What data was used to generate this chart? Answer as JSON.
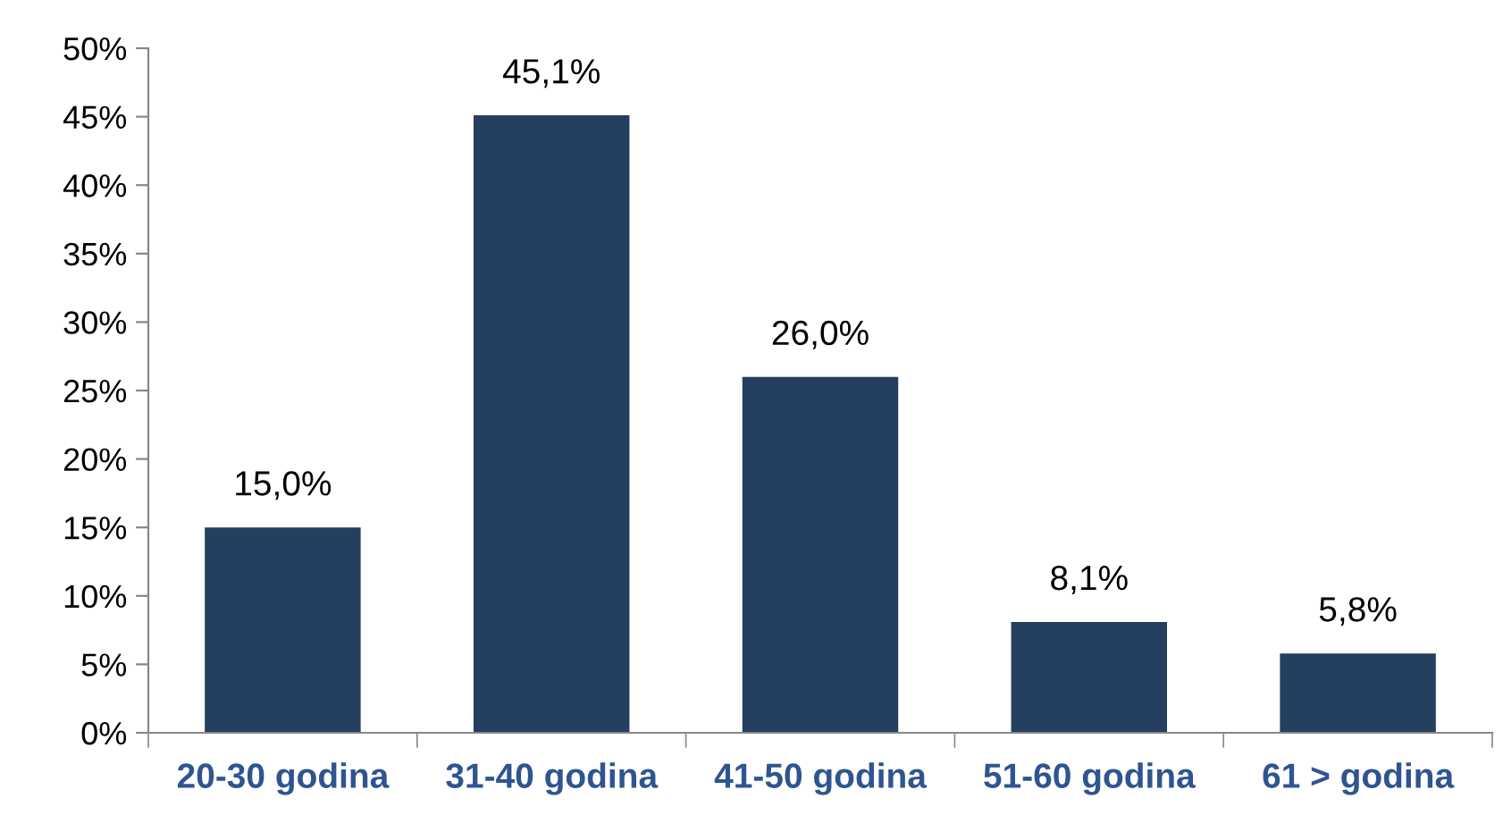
{
  "chart_data": {
    "type": "bar",
    "categories": [
      "20-30 godina",
      "31-40 godina",
      "41-50 godina",
      "51-60 godina",
      "61 > godina"
    ],
    "values": [
      15.0,
      45.1,
      26.0,
      8.1,
      5.8
    ],
    "value_labels": [
      "15,0%",
      "45,1%",
      "26,0%",
      "8,1%",
      "5,8%"
    ],
    "color": "#243f60",
    "ylim": [
      0,
      50
    ],
    "yticks": [
      {
        "value": 0,
        "label": "0%"
      },
      {
        "value": 5,
        "label": "5%"
      },
      {
        "value": 10,
        "label": "10%"
      },
      {
        "value": 15,
        "label": "15%"
      },
      {
        "value": 20,
        "label": "20%"
      },
      {
        "value": 25,
        "label": "25%"
      },
      {
        "value": 30,
        "label": "30%"
      },
      {
        "value": 35,
        "label": "35%"
      },
      {
        "value": 40,
        "label": "40%"
      },
      {
        "value": 45,
        "label": "45%"
      },
      {
        "value": 50,
        "label": "50%"
      }
    ],
    "grid": false,
    "legend": false
  }
}
